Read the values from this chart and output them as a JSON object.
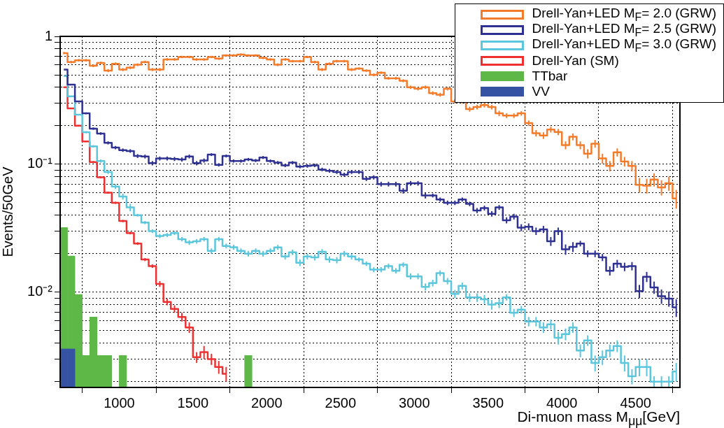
{
  "chart_data": {
    "type": "step",
    "xlabel": "Di-muon mass M$_{μμ}$[GeV]",
    "ylabel": "Events/50GeV",
    "x": [
      625,
      675,
      725,
      775,
      825,
      875,
      925,
      975,
      1025,
      1075,
      1125,
      1175,
      1225,
      1275,
      1325,
      1375,
      1425,
      1475,
      1525,
      1575,
      1625,
      1675,
      1725,
      1775,
      1825,
      1875,
      1925,
      1975,
      2025,
      2075,
      2125,
      2175,
      2225,
      2275,
      2325,
      2375,
      2425,
      2475,
      2525,
      2575,
      2625,
      2675,
      2725,
      2775,
      2825,
      2875,
      2925,
      2975,
      3025,
      3075,
      3125,
      3175,
      3225,
      3275,
      3325,
      3375,
      3425,
      3475,
      3525,
      3575,
      3625,
      3675,
      3725,
      3775,
      3825,
      3875,
      3925,
      3975,
      4025,
      4075,
      4125,
      4175,
      4225,
      4275,
      4325,
      4375,
      4425,
      4475,
      4525,
      4575,
      4625,
      4675,
      4725,
      4775
    ],
    "series": [
      {
        "name": "Drell-Yan+LED M$_{F}$= 2.0 (GRW)",
        "color": "#f47b2a",
        "values": [
          0.74,
          0.63,
          0.65,
          0.65,
          0.59,
          0.62,
          0.54,
          0.61,
          0.55,
          0.57,
          0.6,
          0.63,
          0.55,
          0.55,
          0.66,
          0.66,
          0.69,
          0.69,
          0.66,
          0.66,
          0.69,
          0.67,
          0.71,
          0.71,
          0.72,
          0.71,
          0.71,
          0.68,
          0.66,
          0.6,
          0.66,
          0.64,
          0.64,
          0.69,
          0.63,
          0.55,
          0.61,
          0.64,
          0.64,
          0.55,
          0.56,
          0.54,
          0.5,
          0.52,
          0.47,
          0.47,
          0.45,
          0.4,
          0.39,
          0.4,
          0.36,
          0.35,
          0.39,
          0.31,
          0.31,
          0.27,
          0.28,
          0.29,
          0.28,
          0.25,
          0.24,
          0.24,
          0.25,
          0.21,
          0.175,
          0.168,
          0.187,
          0.179,
          0.141,
          0.164,
          0.141,
          0.121,
          0.145,
          0.111,
          0.097,
          0.124,
          0.105,
          0.097,
          0.069,
          0.068,
          0.076,
          0.066,
          0.071,
          0.054
        ],
        "errors": [
          0.015,
          0.015,
          0.015,
          0.015,
          0.015,
          0.015,
          0.015,
          0.015,
          0.015,
          0.015,
          0.015,
          0.015,
          0.015,
          0.015,
          0.015,
          0.015,
          0.015,
          0.015,
          0.015,
          0.015,
          0.015,
          0.015,
          0.015,
          0.015,
          0.015,
          0.015,
          0.015,
          0.015,
          0.015,
          0.015,
          0.015,
          0.015,
          0.015,
          0.015,
          0.015,
          0.015,
          0.015,
          0.015,
          0.015,
          0.015,
          0.012,
          0.012,
          0.012,
          0.012,
          0.012,
          0.012,
          0.012,
          0.012,
          0.012,
          0.012,
          0.012,
          0.012,
          0.012,
          0.012,
          0.012,
          0.012,
          0.012,
          0.012,
          0.012,
          0.012,
          0.01,
          0.01,
          0.01,
          0.01,
          0.01,
          0.01,
          0.01,
          0.01,
          0.01,
          0.01,
          0.01,
          0.01,
          0.01,
          0.01,
          0.009,
          0.009,
          0.009,
          0.009,
          0.009,
          0.009,
          0.009,
          0.009,
          0.009,
          0.009
        ]
      },
      {
        "name": "Drell-Yan+LED M$_{F}$= 2.5 (GRW)",
        "color": "#2e3192",
        "values": [
          0.55,
          0.42,
          0.31,
          0.25,
          0.19,
          0.174,
          0.147,
          0.135,
          0.129,
          0.127,
          0.116,
          0.115,
          0.102,
          0.111,
          0.111,
          0.11,
          0.109,
          0.115,
          0.102,
          0.107,
          0.119,
          0.099,
          0.116,
          0.106,
          0.106,
          0.109,
          0.107,
          0.113,
          0.106,
          0.103,
          0.098,
          0.103,
          0.096,
          0.097,
          0.098,
          0.091,
          0.089,
          0.087,
          0.083,
          0.087,
          0.087,
          0.077,
          0.079,
          0.07,
          0.07,
          0.07,
          0.062,
          0.071,
          0.071,
          0.057,
          0.057,
          0.053,
          0.05,
          0.05,
          0.053,
          0.049,
          0.0435,
          0.0455,
          0.041,
          0.046,
          0.0365,
          0.039,
          0.032,
          0.0325,
          0.03,
          0.031,
          0.025,
          0.03,
          0.0216,
          0.0226,
          0.024,
          0.02,
          0.02,
          0.0187,
          0.0147,
          0.0167,
          0.0158,
          0.016,
          0.0102,
          0.0132,
          0.0109,
          0.0093,
          0.0089,
          0.0076
        ],
        "errors": [
          null,
          0.004,
          0.004,
          0.004,
          0.004,
          0.004,
          0.004,
          0.004,
          0.004,
          0.004,
          0.004,
          0.004,
          0.004,
          0.004,
          0.004,
          0.004,
          0.004,
          0.004,
          0.004,
          0.004,
          0.003,
          0.003,
          0.003,
          0.003,
          0.003,
          0.003,
          0.003,
          0.003,
          0.003,
          0.003,
          0.003,
          0.003,
          0.003,
          0.003,
          0.003,
          0.003,
          0.003,
          0.003,
          0.003,
          0.003,
          0.003,
          0.003,
          0.003,
          0.003,
          0.003,
          0.003,
          0.003,
          0.003,
          0.003,
          0.003,
          0.002,
          0.002,
          0.002,
          0.002,
          0.002,
          0.002,
          0.002,
          0.002,
          0.002,
          0.002,
          0.002,
          0.002,
          0.002,
          0.002,
          0.002,
          0.002,
          0.002,
          0.002,
          0.002,
          0.002,
          0.0012,
          0.0012,
          0.0012,
          0.0012,
          0.0012,
          0.0012,
          0.0012,
          0.0012,
          0.0012,
          0.0012,
          0.0012,
          0.0012,
          0.0012,
          0.0012
        ]
      },
      {
        "name": "Drell-Yan+LED M$_{F}$= 3.0 (GRW)",
        "color": "#5bc6dc",
        "values": [
          0.49,
          0.34,
          0.244,
          0.178,
          0.138,
          0.106,
          0.087,
          0.067,
          0.056,
          0.046,
          0.04,
          0.035,
          0.03,
          0.0275,
          0.028,
          0.029,
          0.026,
          0.0245,
          0.025,
          0.026,
          0.021,
          0.026,
          0.023,
          0.0225,
          0.021,
          0.02,
          0.021,
          0.02,
          0.021,
          0.0224,
          0.019,
          0.0205,
          0.017,
          0.019,
          0.0187,
          0.0207,
          0.018,
          0.0178,
          0.02,
          0.019,
          0.018,
          0.0167,
          0.015,
          0.015,
          0.016,
          0.0147,
          0.0164,
          0.0133,
          0.0133,
          0.011,
          0.0118,
          0.0141,
          0.0122,
          0.0097,
          0.0112,
          0.0091,
          0.0091,
          0.0088,
          0.008,
          0.0082,
          0.0091,
          0.0069,
          0.0073,
          0.0059,
          0.0059,
          0.0053,
          0.0056,
          0.0044,
          0.0047,
          0.0053,
          0.0035,
          0.0042,
          0.0028,
          0.0031,
          0.0035,
          0.0038,
          0.0028,
          0.0022,
          0.0026,
          0.0026,
          0.002,
          0.002,
          0.002,
          0.0024
        ],
        "errors": [
          null,
          null,
          0.003,
          0.003,
          0.003,
          0.003,
          0.003,
          0.003,
          0.003,
          0.003,
          0.001,
          0.001,
          0.001,
          0.001,
          0.001,
          0.001,
          0.001,
          0.001,
          0.001,
          0.001,
          0.001,
          0.001,
          0.001,
          0.001,
          0.001,
          0.001,
          0.001,
          0.001,
          0.001,
          0.001,
          0.001,
          0.001,
          0.001,
          0.001,
          0.001,
          0.001,
          0.001,
          0.001,
          0.001,
          0.001,
          0.0007,
          0.0007,
          0.0007,
          0.0007,
          0.0007,
          0.0007,
          0.0007,
          0.0007,
          0.0007,
          0.0007,
          0.0007,
          0.0007,
          0.0007,
          0.0007,
          0.0007,
          0.0007,
          0.0007,
          0.0007,
          0.0007,
          0.0007,
          0.0005,
          0.0005,
          0.0005,
          0.0005,
          0.0005,
          0.0005,
          0.0005,
          0.0005,
          0.0005,
          0.0005,
          0.0004,
          0.0004,
          0.0004,
          0.0004,
          0.0004,
          0.0004,
          0.0004,
          0.0003,
          0.0004,
          0.0004,
          0.0002,
          0.0002,
          0.0002,
          0.0004
        ]
      },
      {
        "name": "Drell-Yan (SM)",
        "color": "#ee3030",
        "values": [
          0.4,
          0.273,
          0.2,
          0.151,
          0.104,
          0.079,
          0.06,
          0.05,
          0.036,
          0.029,
          0.024,
          0.018,
          0.016,
          0.0116,
          0.0084,
          0.0074,
          0.0064,
          0.0053,
          0.0031,
          0.0034,
          0.003,
          0.0026,
          0.0023,
          null,
          null,
          null,
          null,
          null,
          null,
          null,
          null,
          null,
          null,
          null,
          null,
          null,
          null,
          null,
          null,
          null,
          null,
          null,
          null,
          null,
          null,
          null,
          null,
          null,
          null,
          null,
          null,
          null,
          null,
          null,
          null,
          null,
          null,
          null,
          null,
          null,
          null,
          null,
          null,
          null,
          null,
          null,
          null,
          null,
          null,
          null,
          null,
          null,
          null,
          null,
          null,
          null,
          null,
          null,
          null,
          null,
          null,
          null,
          null,
          null
        ],
        "errors": [
          0.004,
          0.003,
          0.003,
          0.002,
          0.002,
          0.0015,
          0.0012,
          0.001,
          0.0008,
          0.0007,
          0.0006,
          0.0005,
          0.0005,
          0.0006,
          0.0005,
          0.0005,
          0.0005,
          0.0005,
          0.0003,
          0.0004,
          0.0003,
          0.0003,
          0.0003,
          null,
          null,
          null,
          null,
          null,
          null,
          null,
          null,
          null,
          null,
          null,
          null,
          null,
          null,
          null,
          null,
          null,
          null,
          null,
          null,
          null,
          null,
          null,
          null,
          null,
          null,
          null,
          null,
          null,
          null,
          null,
          null,
          null,
          null,
          null,
          null,
          null,
          null,
          null,
          null,
          null,
          null,
          null,
          null,
          null,
          null,
          null,
          null,
          null,
          null,
          null,
          null,
          null,
          null,
          null,
          null,
          null,
          null,
          null,
          null,
          null
        ]
      },
      {
        "name": "TTbar",
        "type": "bar",
        "color": "#5eb847",
        "values": [
          0.032,
          0.0192,
          0.0096,
          0.0032,
          0.0064,
          0.0032,
          0.0032,
          null,
          0.0032,
          null,
          null,
          null,
          null,
          null,
          null,
          null,
          null,
          null,
          null,
          null,
          null,
          null,
          null,
          null,
          null,
          0.0032,
          null,
          null,
          null,
          null,
          null,
          null,
          null,
          null,
          null,
          null,
          null,
          null,
          null,
          null,
          null,
          null,
          null,
          null,
          null,
          null,
          null,
          null,
          null,
          null,
          null,
          null,
          null,
          null,
          null,
          null,
          null,
          null,
          null,
          null,
          null,
          null,
          null,
          null,
          null,
          null,
          null,
          null,
          null,
          null,
          null,
          null,
          null,
          null,
          null,
          null,
          null,
          null,
          null,
          null,
          null,
          null,
          null,
          null
        ]
      },
      {
        "name": "VV",
        "type": "bar",
        "color": "#3653a3",
        "values": [
          0.0036,
          0.0036,
          null,
          null,
          null,
          null,
          null,
          null,
          null,
          null,
          null,
          null,
          null,
          null,
          null,
          null,
          null,
          null,
          null,
          null,
          null,
          null,
          null,
          null,
          null,
          null,
          null,
          null,
          null,
          null,
          null,
          null,
          null,
          null,
          null,
          null,
          null,
          null,
          null,
          null,
          null,
          null,
          null,
          null,
          null,
          null,
          null,
          null,
          null,
          null,
          null,
          null,
          null,
          null,
          null,
          null,
          null,
          null,
          null,
          null,
          null,
          null,
          null,
          null,
          null,
          null,
          null,
          null,
          null,
          null,
          null,
          null,
          null,
          null,
          null,
          null,
          null,
          null,
          null,
          null,
          null,
          null,
          null,
          null
        ]
      }
    ],
    "xlim": [
      600,
      4800
    ],
    "xticks": [
      1000,
      1500,
      2000,
      2500,
      3000,
      3500,
      4000,
      4500
    ],
    "ylim": [
      0.0018,
      1
    ],
    "yticks": [
      {
        "value": 0.002,
        "label": null
      },
      {
        "value": 0.003,
        "label": null
      },
      {
        "value": 0.004,
        "label": null
      },
      {
        "value": 0.005,
        "label": null
      },
      {
        "value": 0.006,
        "label": null
      },
      {
        "value": 0.007,
        "label": null
      },
      {
        "value": 0.008,
        "label": null
      },
      {
        "value": 0.009,
        "label": null
      },
      {
        "value": 0.01,
        "label": "10⁻²"
      },
      {
        "value": 0.02,
        "label": null
      },
      {
        "value": 0.03,
        "label": null
      },
      {
        "value": 0.04,
        "label": null
      },
      {
        "value": 0.05,
        "label": null
      },
      {
        "value": 0.06,
        "label": null
      },
      {
        "value": 0.07,
        "label": null
      },
      {
        "value": 0.08,
        "label": null
      },
      {
        "value": 0.09,
        "label": null
      },
      {
        "value": 0.1,
        "label": "10⁻¹"
      },
      {
        "value": 0.2,
        "label": null
      },
      {
        "value": 0.3,
        "label": null
      },
      {
        "value": 0.4,
        "label": null
      },
      {
        "value": 0.5,
        "label": null
      },
      {
        "value": 0.6,
        "label": null
      },
      {
        "value": 0.7,
        "label": null
      },
      {
        "value": 0.8,
        "label": null
      },
      {
        "value": 0.9,
        "label": null
      },
      {
        "value": 1,
        "label": "1"
      }
    ],
    "log": true,
    "grid": true,
    "legend": "top right"
  }
}
